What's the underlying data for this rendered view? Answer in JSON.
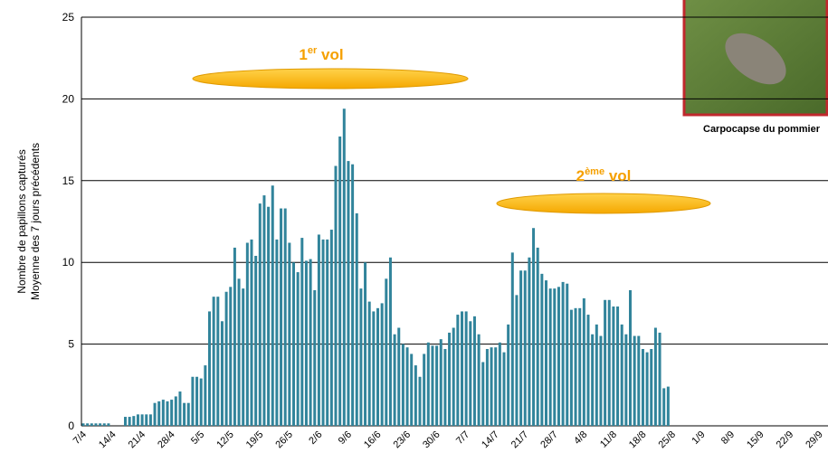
{
  "chart_data": {
    "type": "bar",
    "y_label_lines": [
      "Nombre de papillons capturés",
      "Moyenne des 7 jours précédents"
    ],
    "annotations": [
      {
        "base": "1",
        "sup": "er",
        "rest": " vol"
      },
      {
        "base": "2",
        "sup": "ème",
        "rest": " vol"
      }
    ],
    "photo_caption": "Carpocapse du pommier",
    "color": "#31849b",
    "ylim": [
      0,
      25
    ],
    "yticks": [
      0,
      5,
      10,
      15,
      20,
      25
    ],
    "grid": true,
    "categories": [
      "7/4",
      null,
      null,
      null,
      null,
      null,
      null,
      "14/4",
      null,
      null,
      null,
      null,
      null,
      null,
      "21/4",
      null,
      null,
      null,
      null,
      null,
      null,
      "28/4",
      null,
      null,
      null,
      null,
      null,
      null,
      "5/5",
      null,
      null,
      null,
      null,
      null,
      null,
      "12/5",
      null,
      null,
      null,
      null,
      null,
      null,
      "19/5",
      null,
      null,
      null,
      null,
      null,
      null,
      "26/5",
      null,
      null,
      null,
      null,
      null,
      null,
      "2/6",
      null,
      null,
      null,
      null,
      null,
      null,
      "9/6",
      null,
      null,
      null,
      null,
      null,
      null,
      "16/6",
      null,
      null,
      null,
      null,
      null,
      null,
      "23/6",
      null,
      null,
      null,
      null,
      null,
      null,
      "30/6",
      null,
      null,
      null,
      null,
      null,
      null,
      "7/7",
      null,
      null,
      null,
      null,
      null,
      null,
      "14/7",
      null,
      null,
      null,
      null,
      null,
      null,
      "21/7",
      null,
      null,
      null,
      null,
      null,
      null,
      "28/7",
      null,
      null,
      null,
      null,
      null,
      null,
      "4/8",
      null,
      null,
      null,
      null,
      null,
      null,
      "11/8",
      null,
      null,
      null,
      null,
      null,
      null,
      "18/8",
      null,
      null,
      null,
      null,
      null,
      null,
      "25/8",
      null,
      null,
      null,
      null,
      null,
      null,
      "1/9",
      null,
      null,
      null,
      null,
      null,
      null,
      "8/9",
      null,
      null,
      null,
      null,
      null,
      null,
      "15/9",
      null,
      null,
      null,
      null,
      null,
      null,
      "22/9",
      null,
      null,
      null,
      null,
      null,
      null,
      "29/9"
    ],
    "values": [
      0.15,
      0.15,
      0.15,
      0.15,
      0.15,
      0.15,
      0.15,
      0,
      0,
      0,
      0.55,
      0.55,
      0.6,
      0.7,
      0.7,
      0.7,
      0.7,
      1.4,
      1.5,
      1.6,
      1.5,
      1.6,
      1.8,
      2.1,
      1.4,
      1.4,
      3.0,
      3.0,
      2.9,
      3.7,
      7.0,
      7.9,
      7.9,
      6.4,
      8.2,
      8.5,
      10.9,
      9.0,
      8.4,
      11.2,
      11.4,
      10.4,
      13.6,
      14.1,
      13.4,
      14.7,
      11.4,
      13.3,
      13.3,
      11.2,
      10.0,
      9.4,
      11.5,
      10.1,
      10.2,
      8.3,
      11.7,
      11.4,
      11.4,
      12.0,
      15.9,
      17.7,
      19.4,
      16.2,
      16.0,
      13.0,
      8.4,
      10.0,
      7.6,
      7.0,
      7.2,
      7.5,
      9.0,
      10.3,
      5.6,
      6.0,
      5.0,
      4.8,
      4.4,
      3.7,
      3.0,
      4.4,
      5.1,
      4.9,
      4.9,
      5.3,
      4.7,
      5.7,
      6.0,
      6.8,
      7.0,
      7.0,
      6.4,
      6.7,
      5.6,
      3.9,
      4.7,
      4.8,
      4.8,
      5.1,
      4.5,
      6.2,
      10.6,
      8.0,
      9.5,
      9.5,
      10.3,
      12.1,
      10.9,
      9.3,
      8.9,
      8.4,
      8.4,
      8.5,
      8.8,
      8.7,
      7.1,
      7.2,
      7.2,
      7.8,
      6.8,
      5.6,
      6.2,
      5.5,
      7.7,
      7.7,
      7.3,
      7.3,
      6.2,
      5.6,
      8.3,
      5.5,
      5.5,
      4.7,
      4.5,
      4.7,
      6.0,
      5.7,
      2.3,
      2.4,
      null,
      null,
      null,
      null,
      null,
      null,
      null,
      null,
      null,
      null,
      null,
      null,
      null,
      null,
      null,
      null,
      null,
      null,
      null,
      null,
      null,
      null,
      null,
      null,
      null,
      null,
      null,
      null,
      null,
      null,
      null,
      null,
      null,
      null,
      null,
      null
    ]
  }
}
